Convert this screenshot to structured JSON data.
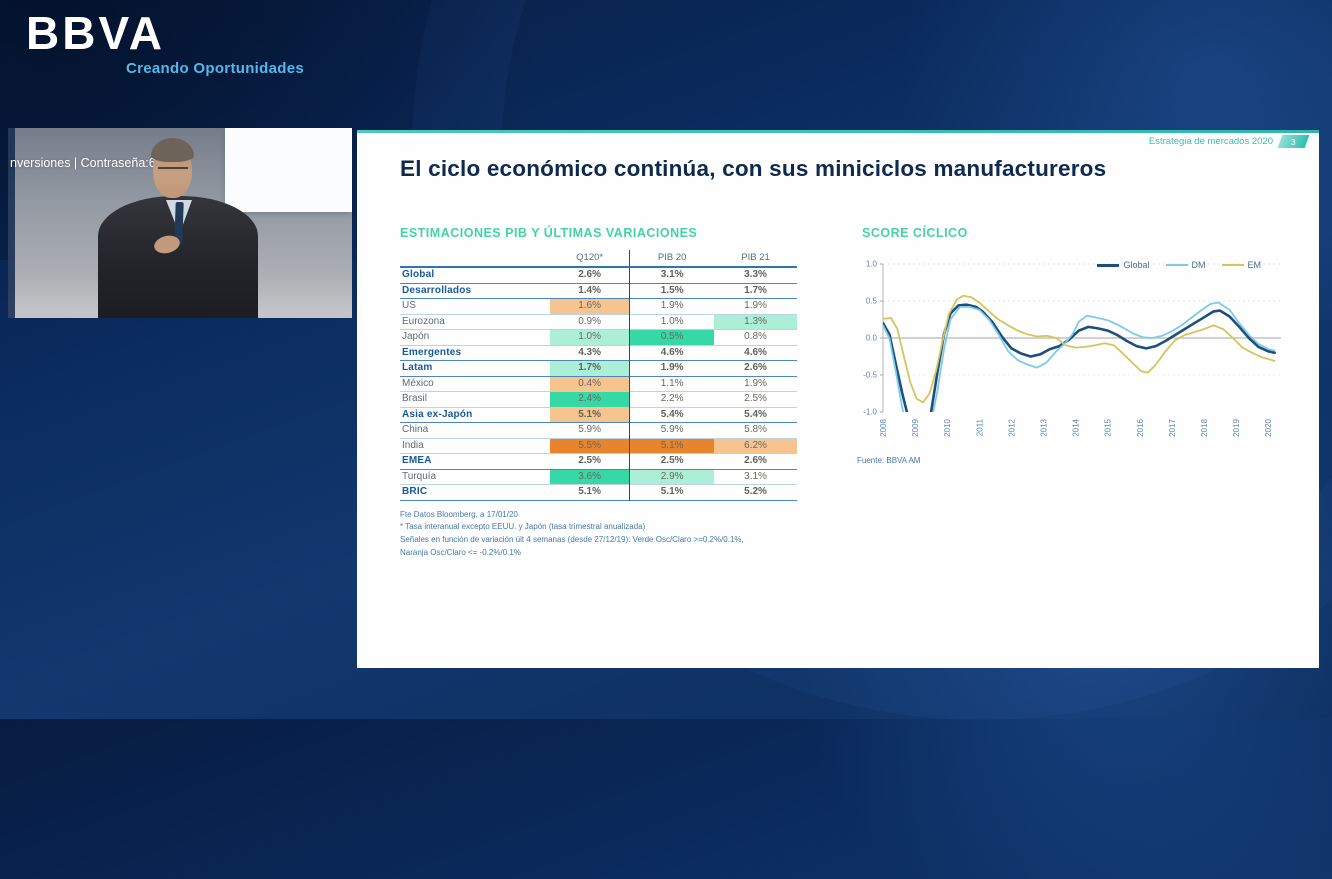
{
  "brand": {
    "logo": "BBVA",
    "tagline": "Creando Oportunidades"
  },
  "video": {
    "caption": "nversiones | Contraseña:6Y"
  },
  "slide": {
    "deck_title": "Estrategia de mercados 2020",
    "page_number": "3",
    "title": "El ciclo económico continúa, con sus miniciclos manufactureros"
  },
  "table": {
    "section_title": "ESTIMACIONES PIB Y ÚLTIMAS VARIACIONES",
    "columns": [
      "",
      "Q120*",
      "PIB 20",
      "PIB 21"
    ],
    "highlight_colors": {
      "lo": "#F5C48F",
      "do": "#E8842B",
      "lg": "#ABEFD7",
      "dg": "#36D8A6"
    },
    "rows": [
      {
        "label": "Global",
        "bold": true,
        "cells": [
          {
            "v": "2.6%"
          },
          {
            "v": "3.1%"
          },
          {
            "v": "3.3%"
          }
        ]
      },
      {
        "label": "Desarrollados",
        "bold": true,
        "cells": [
          {
            "v": "1.4%"
          },
          {
            "v": "1.5%"
          },
          {
            "v": "1.7%"
          }
        ]
      },
      {
        "label": "US",
        "bold": false,
        "cells": [
          {
            "v": "1.6%",
            "hl": "lo"
          },
          {
            "v": "1.9%"
          },
          {
            "v": "1.9%"
          }
        ]
      },
      {
        "label": "Eurozona",
        "bold": false,
        "cells": [
          {
            "v": "0.9%"
          },
          {
            "v": "1.0%"
          },
          {
            "v": "1.3%",
            "hl": "lg"
          }
        ]
      },
      {
        "label": "Japón",
        "bold": false,
        "cells": [
          {
            "v": "1.0%",
            "hl": "lg"
          },
          {
            "v": "0.5%",
            "hl": "dg"
          },
          {
            "v": "0.8%"
          }
        ]
      },
      {
        "label": "Emergentes",
        "bold": true,
        "cells": [
          {
            "v": "4.3%"
          },
          {
            "v": "4.6%"
          },
          {
            "v": "4.6%"
          }
        ]
      },
      {
        "label": "Latam",
        "bold": true,
        "cells": [
          {
            "v": "1.7%",
            "hl": "lg"
          },
          {
            "v": "1.9%"
          },
          {
            "v": "2.6%"
          }
        ]
      },
      {
        "label": "México",
        "bold": false,
        "cells": [
          {
            "v": "0.4%",
            "hl": "lo"
          },
          {
            "v": "1.1%"
          },
          {
            "v": "1.9%"
          }
        ]
      },
      {
        "label": "Brasil",
        "bold": false,
        "cells": [
          {
            "v": "2.4%",
            "hl": "dg"
          },
          {
            "v": "2.2%"
          },
          {
            "v": "2.5%"
          }
        ]
      },
      {
        "label": "Asia ex-Japón",
        "bold": true,
        "cells": [
          {
            "v": "5.1%",
            "hl": "lo"
          },
          {
            "v": "5.4%"
          },
          {
            "v": "5.4%"
          }
        ]
      },
      {
        "label": "China",
        "bold": false,
        "cells": [
          {
            "v": "5.9%"
          },
          {
            "v": "5.9%"
          },
          {
            "v": "5.8%"
          }
        ]
      },
      {
        "label": "India",
        "bold": false,
        "cells": [
          {
            "v": "5.5%",
            "hl": "do"
          },
          {
            "v": "5.1%",
            "hl": "do"
          },
          {
            "v": "6.2%",
            "hl": "lo"
          }
        ]
      },
      {
        "label": "EMEA",
        "bold": true,
        "cells": [
          {
            "v": "2.5%"
          },
          {
            "v": "2.5%"
          },
          {
            "v": "2.6%"
          }
        ]
      },
      {
        "label": "Turquía",
        "bold": false,
        "cells": [
          {
            "v": "3.6%",
            "hl": "dg"
          },
          {
            "v": "2.9%",
            "hl": "lg"
          },
          {
            "v": "3.1%"
          }
        ]
      },
      {
        "label": "BRIC",
        "bold": true,
        "cells": [
          {
            "v": "5.1%"
          },
          {
            "v": "5.1%"
          },
          {
            "v": "5.2%"
          }
        ]
      }
    ],
    "footnotes": [
      "Fte Datos Bloomberg, a 17/01/20",
      "* Tasa interanual excepto EEUU. y Japón (tasa trimestral anualizada)",
      "Señales en función de variación últ 4 semanas (desde 27/12/19): Verde Osc/Claro >=0.2%/0.1%,",
      "Naranja Osc/Claro <= -0.2%/0.1%"
    ]
  },
  "chart_data": {
    "type": "line",
    "title": "SCORE CÍCLICO",
    "source": "Fuente: BBVA AM",
    "xlim": [
      2008,
      2020.4
    ],
    "ylim": [
      -1.0,
      1.0
    ],
    "x_ticks": [
      2008,
      2009,
      2010,
      2011,
      2012,
      2013,
      2014,
      2015,
      2016,
      2017,
      2018,
      2019,
      2020
    ],
    "y_ticks": [
      {
        "v": 1.0,
        "label": "1.0"
      },
      {
        "v": 0.5,
        "label": "0.5"
      },
      {
        "v": 0.0,
        "label": "0.0"
      },
      {
        "v": -0.5,
        "label": "-0.5"
      },
      {
        "v": -1.0,
        "label": "-1.0"
      }
    ],
    "legend_position": "top-right",
    "series": [
      {
        "name": "Global",
        "color": "#1E4E79",
        "width": 2.6,
        "points": [
          [
            2008.0,
            0.2
          ],
          [
            2008.2,
            0.05
          ],
          [
            2008.4,
            -0.35
          ],
          [
            2008.6,
            -0.75
          ],
          [
            2008.8,
            -1.1
          ],
          [
            2009.0,
            -1.3
          ],
          [
            2009.3,
            -1.3
          ],
          [
            2009.5,
            -1.0
          ],
          [
            2009.7,
            -0.45
          ],
          [
            2009.9,
            0.05
          ],
          [
            2010.1,
            0.33
          ],
          [
            2010.35,
            0.44
          ],
          [
            2010.6,
            0.45
          ],
          [
            2010.9,
            0.42
          ],
          [
            2011.1,
            0.36
          ],
          [
            2011.4,
            0.22
          ],
          [
            2011.7,
            0.02
          ],
          [
            2012.0,
            -0.14
          ],
          [
            2012.3,
            -0.21
          ],
          [
            2012.6,
            -0.25
          ],
          [
            2012.9,
            -0.22
          ],
          [
            2013.2,
            -0.15
          ],
          [
            2013.5,
            -0.11
          ],
          [
            2013.8,
            -0.02
          ],
          [
            2014.1,
            0.1
          ],
          [
            2014.4,
            0.15
          ],
          [
            2014.7,
            0.13
          ],
          [
            2015.0,
            0.1
          ],
          [
            2015.3,
            0.04
          ],
          [
            2015.6,
            -0.04
          ],
          [
            2015.9,
            -0.11
          ],
          [
            2016.2,
            -0.14
          ],
          [
            2016.5,
            -0.11
          ],
          [
            2016.8,
            -0.04
          ],
          [
            2017.1,
            0.04
          ],
          [
            2017.4,
            0.12
          ],
          [
            2017.7,
            0.2
          ],
          [
            2018.0,
            0.28
          ],
          [
            2018.3,
            0.36
          ],
          [
            2018.5,
            0.37
          ],
          [
            2018.8,
            0.29
          ],
          [
            2019.1,
            0.15
          ],
          [
            2019.4,
            0.0
          ],
          [
            2019.7,
            -0.12
          ],
          [
            2020.0,
            -0.18
          ],
          [
            2020.2,
            -0.2
          ]
        ]
      },
      {
        "name": "DM",
        "color": "#7CCBEC",
        "width": 1.8,
        "points": [
          [
            2008.0,
            0.17
          ],
          [
            2008.2,
            0.0
          ],
          [
            2008.4,
            -0.45
          ],
          [
            2008.6,
            -0.95
          ],
          [
            2008.8,
            -1.3
          ],
          [
            2009.1,
            -1.4
          ],
          [
            2009.5,
            -1.15
          ],
          [
            2009.7,
            -0.7
          ],
          [
            2009.9,
            -0.15
          ],
          [
            2010.1,
            0.25
          ],
          [
            2010.4,
            0.42
          ],
          [
            2010.7,
            0.42
          ],
          [
            2011.0,
            0.38
          ],
          [
            2011.3,
            0.25
          ],
          [
            2011.6,
            0.05
          ],
          [
            2011.9,
            -0.18
          ],
          [
            2012.2,
            -0.3
          ],
          [
            2012.5,
            -0.36
          ],
          [
            2012.8,
            -0.4
          ],
          [
            2013.1,
            -0.33
          ],
          [
            2013.4,
            -0.18
          ],
          [
            2013.65,
            -0.08
          ],
          [
            2013.9,
            0.05
          ],
          [
            2014.1,
            0.22
          ],
          [
            2014.35,
            0.3
          ],
          [
            2014.6,
            0.28
          ],
          [
            2015.0,
            0.24
          ],
          [
            2015.4,
            0.16
          ],
          [
            2015.8,
            0.06
          ],
          [
            2016.1,
            0.01
          ],
          [
            2016.4,
            0.0
          ],
          [
            2016.7,
            0.03
          ],
          [
            2017.0,
            0.09
          ],
          [
            2017.3,
            0.17
          ],
          [
            2017.6,
            0.27
          ],
          [
            2017.9,
            0.37
          ],
          [
            2018.2,
            0.46
          ],
          [
            2018.45,
            0.48
          ],
          [
            2018.8,
            0.38
          ],
          [
            2019.1,
            0.2
          ],
          [
            2019.4,
            0.04
          ],
          [
            2019.7,
            -0.08
          ],
          [
            2020.0,
            -0.15
          ],
          [
            2020.2,
            -0.17
          ]
        ]
      },
      {
        "name": "EM",
        "color": "#D5C55E",
        "width": 1.8,
        "points": [
          [
            2008.0,
            0.26
          ],
          [
            2008.25,
            0.27
          ],
          [
            2008.45,
            0.12
          ],
          [
            2008.65,
            -0.25
          ],
          [
            2008.85,
            -0.6
          ],
          [
            2009.05,
            -0.82
          ],
          [
            2009.25,
            -0.87
          ],
          [
            2009.45,
            -0.75
          ],
          [
            2009.65,
            -0.45
          ],
          [
            2009.85,
            -0.05
          ],
          [
            2010.05,
            0.32
          ],
          [
            2010.3,
            0.52
          ],
          [
            2010.5,
            0.57
          ],
          [
            2010.75,
            0.55
          ],
          [
            2011.0,
            0.48
          ],
          [
            2011.3,
            0.36
          ],
          [
            2011.6,
            0.25
          ],
          [
            2011.9,
            0.17
          ],
          [
            2012.2,
            0.1
          ],
          [
            2012.5,
            0.05
          ],
          [
            2012.8,
            0.02
          ],
          [
            2013.1,
            0.03
          ],
          [
            2013.4,
            0.0
          ],
          [
            2013.7,
            -0.1
          ],
          [
            2014.0,
            -0.13
          ],
          [
            2014.3,
            -0.12
          ],
          [
            2014.6,
            -0.1
          ],
          [
            2014.9,
            -0.07
          ],
          [
            2015.2,
            -0.1
          ],
          [
            2015.5,
            -0.22
          ],
          [
            2015.8,
            -0.35
          ],
          [
            2016.05,
            -0.45
          ],
          [
            2016.25,
            -0.47
          ],
          [
            2016.5,
            -0.36
          ],
          [
            2016.8,
            -0.18
          ],
          [
            2017.1,
            -0.03
          ],
          [
            2017.4,
            0.04
          ],
          [
            2017.7,
            0.08
          ],
          [
            2018.0,
            0.12
          ],
          [
            2018.3,
            0.17
          ],
          [
            2018.6,
            0.12
          ],
          [
            2018.9,
            0.0
          ],
          [
            2019.2,
            -0.13
          ],
          [
            2019.5,
            -0.2
          ],
          [
            2019.8,
            -0.26
          ],
          [
            2020.2,
            -0.31
          ]
        ]
      }
    ]
  }
}
